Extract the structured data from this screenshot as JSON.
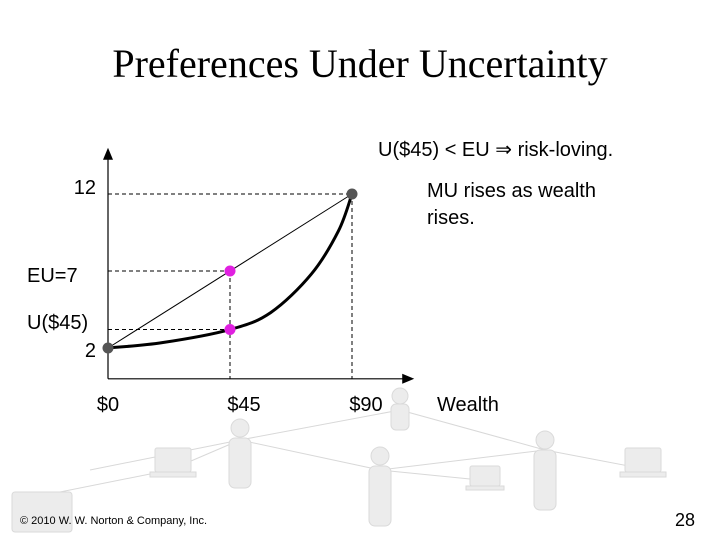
{
  "slide": {
    "title": "Preferences Under Uncertainty",
    "copyright": "© 2010 W. W. Norton & Company, Inc.",
    "page_number": "28"
  },
  "chart_data": {
    "type": "line",
    "xlabel": "Wealth",
    "x_ticks": [
      {
        "value": 0,
        "label": "$0"
      },
      {
        "value": 45,
        "label": "$45"
      },
      {
        "value": 90,
        "label": "$90"
      }
    ],
    "y_ticks": [
      {
        "value": 2,
        "label": "2"
      },
      {
        "value": 12,
        "label": "12"
      }
    ],
    "xlim": [
      0,
      110
    ],
    "ylim": [
      0,
      15
    ],
    "curve_points": [
      [
        0,
        2
      ],
      [
        20,
        2.35
      ],
      [
        45,
        3.2
      ],
      [
        60,
        4.3
      ],
      [
        75,
        6.8
      ],
      [
        85,
        9.6
      ],
      [
        90,
        12
      ]
    ],
    "chord": [
      [
        0,
        2
      ],
      [
        90,
        12
      ]
    ],
    "points": [
      {
        "x": 0,
        "y": 2,
        "role": "endpoint",
        "color": "#555555"
      },
      {
        "x": 90,
        "y": 12,
        "role": "endpoint",
        "color": "#555555"
      },
      {
        "x": 45,
        "y": 7,
        "role": "EU",
        "color": "#e020e0"
      },
      {
        "x": 45,
        "y": 3.2,
        "role": "U($45)",
        "color": "#e020e0"
      }
    ],
    "annotations": {
      "eu_label": "EU=7",
      "u45_label": "U($45)",
      "header": "U($45) < EU ⇒ risk-loving.",
      "note_line1": "MU rises as wealth",
      "note_line2": "rises."
    }
  }
}
